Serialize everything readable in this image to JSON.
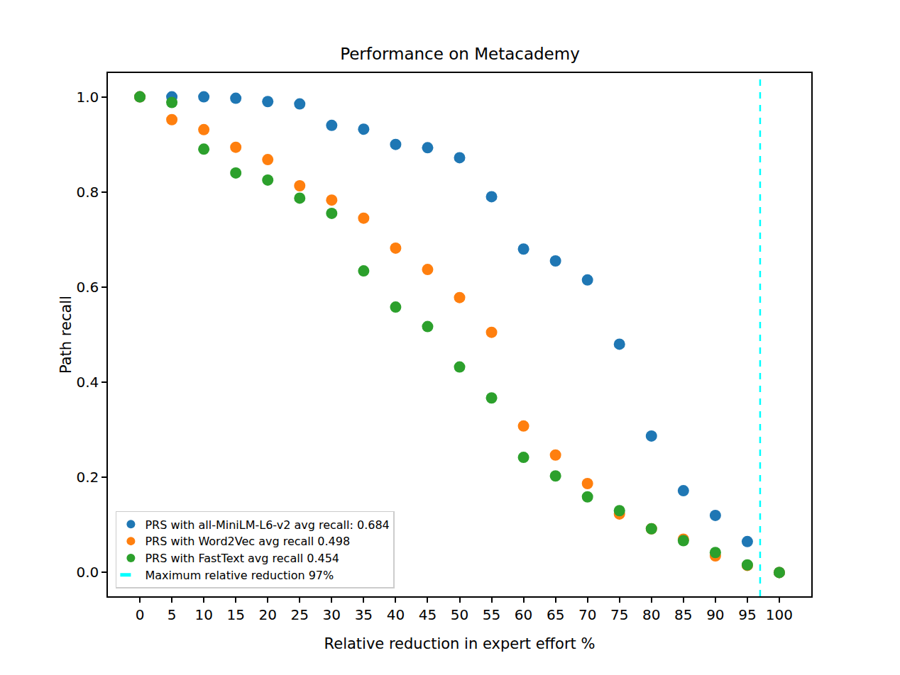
{
  "chart_data": {
    "type": "scatter",
    "title": "Performance on Metacademy",
    "x_label": "Relative reduction in expert effort %",
    "y_label": "Path recall",
    "x": [
      0,
      5,
      10,
      15,
      20,
      25,
      30,
      35,
      40,
      45,
      50,
      55,
      60,
      65,
      70,
      75,
      80,
      85,
      90,
      95,
      100
    ],
    "series": [
      {
        "name": "PRS with all-MiniLM-L6-v2 avg recall: 0.684",
        "color": "#1f77b4",
        "marker": "circle",
        "values": [
          1.0,
          1.0,
          1.0,
          0.997,
          0.99,
          0.985,
          0.94,
          0.932,
          0.9,
          0.893,
          0.872,
          0.79,
          0.68,
          0.655,
          0.615,
          0.48,
          0.287,
          0.172,
          0.12,
          0.065,
          0.0
        ]
      },
      {
        "name": "PRS with Word2Vec avg recall 0.498",
        "color": "#ff7f0e",
        "marker": "circle",
        "values": [
          1.0,
          0.952,
          0.931,
          0.894,
          0.868,
          0.813,
          0.783,
          0.745,
          0.682,
          0.637,
          0.578,
          0.505,
          0.308,
          0.247,
          0.187,
          0.123,
          0.092,
          0.07,
          0.035,
          0.015,
          0.0
        ]
      },
      {
        "name": "PRS with FastText avg recall 0.454",
        "color": "#2ca02c",
        "marker": "circle",
        "values": [
          1.0,
          0.988,
          0.89,
          0.84,
          0.825,
          0.787,
          0.755,
          0.634,
          0.558,
          0.517,
          0.432,
          0.367,
          0.242,
          0.203,
          0.159,
          0.13,
          0.092,
          0.067,
          0.042,
          0.016,
          0.0
        ]
      },
      {
        "name": "Maximum relative reduction 97%",
        "type": "vline",
        "color": "#00ffff",
        "line_style": "dash",
        "x": 97
      }
    ],
    "xlim": [
      -5,
      105
    ],
    "xticks": [
      0,
      5,
      10,
      15,
      20,
      25,
      30,
      35,
      40,
      45,
      50,
      55,
      60,
      65,
      70,
      75,
      80,
      85,
      90,
      95,
      100
    ],
    "ylim": [
      -0.05,
      1.05
    ],
    "yticks": [
      {
        "value": 0,
        "label": "0.0"
      },
      0.2,
      0.4,
      0.6,
      0.8,
      {
        "value": 1,
        "label": "1.0"
      }
    ],
    "grid": false,
    "legend": "lower left"
  }
}
